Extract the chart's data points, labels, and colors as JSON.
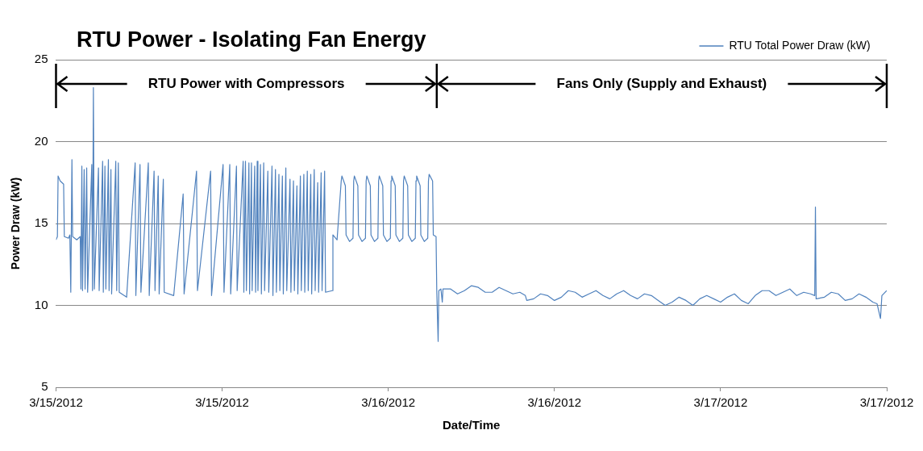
{
  "chart_data": {
    "type": "line",
    "title": "RTU Power - Isolating Fan Energy",
    "xlabel": "Date/Time",
    "ylabel": "Power Draw (kW)",
    "xlim": [
      "2012-03-15T00:00",
      "2012-03-17T12:00"
    ],
    "xticks": [
      {
        "value": "2012-03-15T00:00",
        "label": "3/15/2012"
      },
      {
        "value": "2012-03-15T12:00",
        "label": "3/15/2012"
      },
      {
        "value": "2012-03-16T00:00",
        "label": "3/16/2012"
      },
      {
        "value": "2012-03-16T12:00",
        "label": "3/16/2012"
      },
      {
        "value": "2012-03-17T00:00",
        "label": "3/17/2012"
      },
      {
        "value": "2012-03-17T12:00",
        "label": "3/17/2012"
      }
    ],
    "ylim": [
      5,
      25
    ],
    "yticks": [
      5,
      10,
      15,
      20,
      25
    ],
    "grid": "y",
    "legend": "top right",
    "marker": "none",
    "line_style": "solid",
    "ref_lines": [
      {
        "axis": "x",
        "value": "2012-03-16T03:30",
        "color": "#000000"
      }
    ],
    "annotations": [
      "RTU Power with Compressors",
      "Fans Only (Supply and Exhaust)"
    ],
    "series": [
      {
        "name": "RTU Total Power Draw (kW)",
        "color": "#4f81bd",
        "x": [
          "2012-03-15T00:00",
          "2012-03-15T00:06",
          "2012-03-15T00:09",
          "2012-03-15T00:18",
          "2012-03-15T00:33",
          "2012-03-15T00:36",
          "2012-03-15T00:54",
          "2012-03-15T01:00",
          "2012-03-15T01:04",
          "2012-03-15T01:06",
          "2012-03-15T01:09",
          "2012-03-15T01:12",
          "2012-03-15T01:30",
          "2012-03-15T01:45",
          "2012-03-15T01:48",
          "2012-03-15T01:52",
          "2012-03-15T01:55",
          "2012-03-15T02:02",
          "2012-03-15T02:06",
          "2012-03-15T02:13",
          "2012-03-15T02:17",
          "2012-03-15T02:35",
          "2012-03-15T02:38",
          "2012-03-15T02:42",
          "2012-03-15T02:46",
          "2012-03-15T03:04",
          "2012-03-15T03:07",
          "2012-03-15T03:22",
          "2012-03-15T03:25",
          "2012-03-15T03:32",
          "2012-03-15T03:36",
          "2012-03-15T03:47",
          "2012-03-15T03:50",
          "2012-03-15T03:58",
          "2012-03-15T04:01",
          "2012-03-15T04:19",
          "2012-03-15T04:23",
          "2012-03-15T04:30",
          "2012-03-15T04:34",
          "2012-03-15T05:06",
          "2012-03-15T05:43",
          "2012-03-15T05:46",
          "2012-03-15T06:04",
          "2012-03-15T06:08",
          "2012-03-15T06:40",
          "2012-03-15T06:44",
          "2012-03-15T07:05",
          "2012-03-15T07:09",
          "2012-03-15T07:23",
          "2012-03-15T07:27",
          "2012-03-15T07:45",
          "2012-03-15T07:49",
          "2012-03-15T08:30",
          "2012-03-15T09:11",
          "2012-03-15T09:15",
          "2012-03-15T10:09",
          "2012-03-15T10:13",
          "2012-03-15T11:10",
          "2012-03-15T11:14",
          "2012-03-15T12:04",
          "2012-03-15T12:08",
          "2012-03-15T12:33",
          "2012-03-15T12:37",
          "2012-03-15T13:02",
          "2012-03-15T13:05",
          "2012-03-15T13:31",
          "2012-03-15T13:34",
          "2012-03-15T13:41",
          "2012-03-15T13:45",
          "2012-03-15T13:56",
          "2012-03-15T13:59",
          "2012-03-15T14:07",
          "2012-03-15T14:10",
          "2012-03-15T14:21",
          "2012-03-15T14:25",
          "2012-03-15T14:32",
          "2012-03-15T14:35",
          "2012-03-15T14:46",
          "2012-03-15T14:50",
          "2012-03-15T15:00",
          "2012-03-15T15:04",
          "2012-03-15T15:18",
          "2012-03-15T15:22",
          "2012-03-15T15:36",
          "2012-03-15T15:40",
          "2012-03-15T15:51",
          "2012-03-15T15:55",
          "2012-03-15T16:06",
          "2012-03-15T16:10",
          "2012-03-15T16:21",
          "2012-03-15T16:25",
          "2012-03-15T16:36",
          "2012-03-15T16:40",
          "2012-03-15T16:54",
          "2012-03-15T16:58",
          "2012-03-15T17:09",
          "2012-03-15T17:13",
          "2012-03-15T17:24",
          "2012-03-15T17:28",
          "2012-03-15T17:39",
          "2012-03-15T17:43",
          "2012-03-15T17:54",
          "2012-03-15T17:58",
          "2012-03-15T18:09",
          "2012-03-15T18:13",
          "2012-03-15T18:24",
          "2012-03-15T18:28",
          "2012-03-15T18:39",
          "2012-03-15T18:43",
          "2012-03-15T18:54",
          "2012-03-15T18:58",
          "2012-03-15T19:09",
          "2012-03-15T19:13",
          "2012-03-15T19:24",
          "2012-03-15T19:28",
          "2012-03-15T19:57",
          "2012-03-15T20:00",
          "2012-03-15T20:18",
          "2012-03-15T20:36",
          "2012-03-15T20:39",
          "2012-03-15T20:54",
          "2012-03-15T20:57",
          "2012-03-15T21:12",
          "2012-03-15T21:27",
          "2012-03-15T21:30",
          "2012-03-15T21:33",
          "2012-03-15T21:48",
          "2012-03-15T21:51",
          "2012-03-15T22:06",
          "2012-03-15T22:21",
          "2012-03-15T22:24",
          "2012-03-15T22:27",
          "2012-03-15T22:42",
          "2012-03-15T22:45",
          "2012-03-15T23:00",
          "2012-03-15T23:15",
          "2012-03-15T23:18",
          "2012-03-15T23:21",
          "2012-03-15T23:36",
          "2012-03-15T23:39",
          "2012-03-15T23:54",
          "2012-03-16T00:09",
          "2012-03-16T00:12",
          "2012-03-16T00:15",
          "2012-03-16T00:30",
          "2012-03-16T00:33",
          "2012-03-16T00:48",
          "2012-03-16T01:03",
          "2012-03-16T01:06",
          "2012-03-16T01:09",
          "2012-03-16T01:24",
          "2012-03-16T01:27",
          "2012-03-16T01:42",
          "2012-03-16T01:57",
          "2012-03-16T02:00",
          "2012-03-16T02:03",
          "2012-03-16T02:18",
          "2012-03-16T02:21",
          "2012-03-16T02:36",
          "2012-03-16T02:51",
          "2012-03-16T02:54",
          "2012-03-16T02:57",
          "2012-03-16T03:12",
          "2012-03-16T03:15",
          "2012-03-16T03:27",
          "2012-03-16T03:30",
          "2012-03-16T03:36",
          "2012-03-16T03:39",
          "2012-03-16T03:48",
          "2012-03-16T03:54",
          "2012-03-16T03:57",
          "2012-03-16T04:30",
          "2012-03-16T05:00",
          "2012-03-16T05:30",
          "2012-03-16T06:00",
          "2012-03-16T06:30",
          "2012-03-16T07:00",
          "2012-03-16T07:30",
          "2012-03-16T08:00",
          "2012-03-16T08:30",
          "2012-03-16T09:00",
          "2012-03-16T09:30",
          "2012-03-16T09:54",
          "2012-03-16T10:00",
          "2012-03-16T10:30",
          "2012-03-16T11:00",
          "2012-03-16T11:30",
          "2012-03-16T12:00",
          "2012-03-16T12:30",
          "2012-03-16T13:00",
          "2012-03-16T13:30",
          "2012-03-16T14:00",
          "2012-03-16T14:30",
          "2012-03-16T15:00",
          "2012-03-16T15:30",
          "2012-03-16T16:00",
          "2012-03-16T16:30",
          "2012-03-16T17:00",
          "2012-03-16T17:30",
          "2012-03-16T18:00",
          "2012-03-16T18:30",
          "2012-03-16T19:00",
          "2012-03-16T19:30",
          "2012-03-16T20:00",
          "2012-03-16T20:30",
          "2012-03-16T21:00",
          "2012-03-16T21:30",
          "2012-03-16T22:00",
          "2012-03-16T22:30",
          "2012-03-16T23:00",
          "2012-03-16T23:30",
          "2012-03-17T00:00",
          "2012-03-17T00:30",
          "2012-03-17T01:00",
          "2012-03-17T01:30",
          "2012-03-17T02:00",
          "2012-03-17T02:30",
          "2012-03-17T03:00",
          "2012-03-17T03:30",
          "2012-03-17T04:00",
          "2012-03-17T04:30",
          "2012-03-17T05:00",
          "2012-03-17T05:30",
          "2012-03-17T06:00",
          "2012-03-17T06:30",
          "2012-03-17T06:48",
          "2012-03-17T06:51",
          "2012-03-17T06:54",
          "2012-03-17T07:30",
          "2012-03-17T08:00",
          "2012-03-17T08:30",
          "2012-03-17T09:00",
          "2012-03-17T09:30",
          "2012-03-17T10:00",
          "2012-03-17T10:30",
          "2012-03-17T11:00",
          "2012-03-17T11:18",
          "2012-03-17T11:33",
          "2012-03-17T11:39",
          "2012-03-17T12:00"
        ],
        "values": [
          14.0,
          14.2,
          17.9,
          17.6,
          17.4,
          14.2,
          14.1,
          14.3,
          10.8,
          14.0,
          18.9,
          14.2,
          14.0,
          14.2,
          11.0,
          18.5,
          10.9,
          18.3,
          11.0,
          18.4,
          10.8,
          18.6,
          10.9,
          23.3,
          11.0,
          18.4,
          10.9,
          18.8,
          10.8,
          18.5,
          11.0,
          18.9,
          10.9,
          18.3,
          10.7,
          18.8,
          10.9,
          18.7,
          10.8,
          10.5,
          18.7,
          10.6,
          18.6,
          10.8,
          18.7,
          10.6,
          18.2,
          10.9,
          17.9,
          10.7,
          17.7,
          10.8,
          10.6,
          16.8,
          10.7,
          18.2,
          10.9,
          18.2,
          10.6,
          18.6,
          10.8,
          18.6,
          10.7,
          18.5,
          10.9,
          18.8,
          10.8,
          18.8,
          10.9,
          18.7,
          10.7,
          18.7,
          10.9,
          18.5,
          10.8,
          18.8,
          10.9,
          18.6,
          10.7,
          18.7,
          10.9,
          18.2,
          10.8,
          18.5,
          10.6,
          18.3,
          10.8,
          18.0,
          10.9,
          17.9,
          10.7,
          18.4,
          10.9,
          17.7,
          10.8,
          17.6,
          10.9,
          17.3,
          10.7,
          17.9,
          10.9,
          18.0,
          10.8,
          18.2,
          10.9,
          18.0,
          10.7,
          18.3,
          10.9,
          17.5,
          10.8,
          18.1,
          10.9,
          18.2,
          10.8,
          10.9,
          14.3,
          14.0,
          17.6,
          17.9,
          17.3,
          14.3,
          13.9,
          14.1,
          17.6,
          17.9,
          17.3,
          14.3,
          13.9,
          14.1,
          17.6,
          17.9,
          17.3,
          14.3,
          13.9,
          14.1,
          17.6,
          17.9,
          17.3,
          14.3,
          13.9,
          14.1,
          17.6,
          17.9,
          17.3,
          14.3,
          13.9,
          14.1,
          17.6,
          17.9,
          17.3,
          14.3,
          13.9,
          14.1,
          17.6,
          17.9,
          17.3,
          14.3,
          13.9,
          14.1,
          17.6,
          18.0,
          17.6,
          14.3,
          14.2,
          10.9,
          7.8,
          10.9,
          11.0,
          10.2,
          11.0,
          11.0,
          10.7,
          10.9,
          11.2,
          11.1,
          10.8,
          10.8,
          11.1,
          10.9,
          10.7,
          10.8,
          10.6,
          10.3,
          10.4,
          10.7,
          10.6,
          10.3,
          10.5,
          10.9,
          10.8,
          10.5,
          10.7,
          10.9,
          10.6,
          10.4,
          10.7,
          10.9,
          10.6,
          10.4,
          10.7,
          10.6,
          10.3,
          10.0,
          10.2,
          10.5,
          10.3,
          10.0,
          10.4,
          10.6,
          10.4,
          10.2,
          10.5,
          10.7,
          10.3,
          10.1,
          10.6,
          10.9,
          10.9,
          10.6,
          10.8,
          11.0,
          10.6,
          10.8,
          10.7,
          10.6,
          16.0,
          10.4,
          10.5,
          10.8,
          10.7,
          10.3,
          10.4,
          10.7,
          10.5,
          10.2,
          10.1,
          9.2,
          10.6,
          10.9
        ]
      }
    ]
  }
}
